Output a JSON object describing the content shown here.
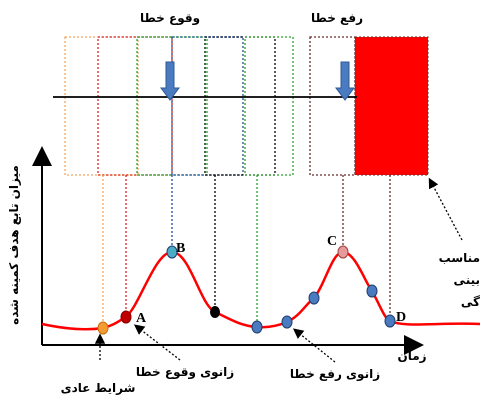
{
  "labels": {
    "fault_occurrence": "وقوع خطا",
    "fault_removal": "رفع خطا",
    "y_axis": "میزان تابع هدف کمینه شده",
    "x_axis": "زمان",
    "point_a": "A",
    "point_b": "B",
    "point_c": "C",
    "point_d": "D",
    "knee_occurrence": "زانوی وقوع خطا",
    "knee_removal": "زانوی رفع خطا",
    "normal": "شرایط عادی",
    "side_note": [
      "مناسب",
      "بینی",
      "گی"
    ]
  }
}
